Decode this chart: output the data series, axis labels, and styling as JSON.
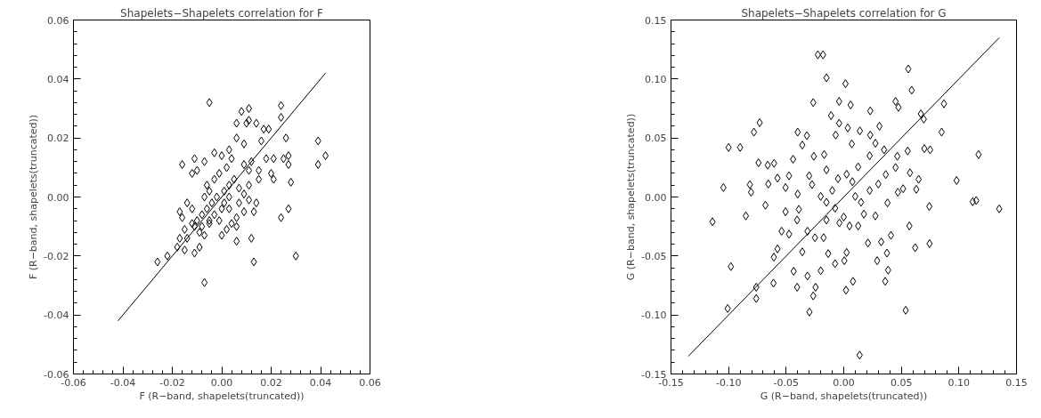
{
  "chart_data": [
    {
      "type": "scatter",
      "title": "Shapelets−Shapelets correlation for F",
      "xlabel": "F (R−band, shapelets(truncated))",
      "ylabel": "F (R−band, shapelets(truncated))",
      "xlim": [
        -0.06,
        0.06
      ],
      "ylim": [
        -0.06,
        0.06
      ],
      "xticks": [
        -0.06,
        -0.04,
        -0.02,
        {
          "value": 0,
          "label": "0.00"
        },
        0.02,
        0.04,
        0.06
      ],
      "yticks": [
        -0.06,
        -0.04,
        -0.02,
        {
          "value": 0,
          "label": "0.00"
        },
        0.02,
        0.04,
        0.06
      ],
      "grid": false,
      "series": [
        {
          "marker": "diamond",
          "color": "#000000",
          "x": [
            -0.005,
            0.011,
            0.008,
            0.024,
            0.024,
            0.011,
            0.014,
            0.006,
            0.01,
            0.019,
            0.017,
            0.026,
            0.039,
            0.042,
            0.039,
            0.016,
            0.006,
            0.009,
            0.027,
            0.027,
            0.025,
            0.021,
            0.018,
            0.028,
            0.02,
            0.021,
            0.015,
            0.015,
            -0.016,
            -0.011,
            -0.012,
            -0.01,
            -0.003,
            0.0,
            0.003,
            0.004,
            0.009,
            0.012,
            0.011,
            -0.007,
            -0.014,
            -0.017,
            -0.016,
            -0.012,
            -0.015,
            -0.017,
            -0.018,
            -0.015,
            -0.022,
            -0.026,
            -0.011,
            -0.009,
            -0.007,
            -0.014,
            -0.011,
            -0.009,
            -0.007,
            -0.01,
            -0.008,
            -0.006,
            -0.004,
            -0.002,
            0.001,
            0.003,
            0.005,
            0.007,
            0.009,
            0.011,
            0.011,
            -0.003,
            -0.001,
            -0.005,
            0.0,
            0.002,
            0.004,
            0.006,
            0.006,
            0.009,
            0.006,
            0.012,
            0.013,
            0.013,
            0.014,
            0.024,
            0.027,
            0.03,
            -0.007,
            -0.005,
            0.001,
            0.003,
            -0.006,
            -0.003,
            0.0,
            -0.005,
            -0.008,
            -0.012,
            0.003,
            0.007,
            -0.001,
            0.002
          ],
          "values": [
            0.032,
            0.03,
            0.029,
            0.031,
            0.027,
            0.026,
            0.025,
            0.025,
            0.025,
            0.023,
            0.023,
            0.02,
            0.019,
            0.014,
            0.011,
            0.019,
            0.02,
            0.018,
            0.014,
            0.011,
            0.013,
            0.013,
            0.013,
            0.005,
            0.008,
            0.006,
            0.009,
            0.006,
            0.011,
            0.013,
            0.008,
            0.009,
            0.015,
            0.014,
            0.016,
            0.013,
            0.011,
            0.012,
            0.009,
            0.012,
            -0.002,
            -0.005,
            -0.007,
            -0.004,
            -0.011,
            -0.014,
            -0.017,
            -0.018,
            -0.02,
            -0.022,
            -0.019,
            -0.017,
            -0.029,
            -0.014,
            -0.01,
            -0.012,
            -0.013,
            -0.008,
            -0.006,
            -0.004,
            -0.002,
            0.0,
            0.002,
            0.004,
            0.006,
            0.003,
            0.001,
            0.004,
            -0.001,
            -0.006,
            -0.008,
            -0.009,
            -0.013,
            -0.011,
            -0.009,
            -0.01,
            -0.015,
            -0.005,
            -0.007,
            -0.014,
            -0.022,
            -0.005,
            -0.002,
            -0.007,
            -0.004,
            -0.02,
            0.0,
            0.002,
            -0.002,
            -0.004,
            0.004,
            0.006,
            -0.004,
            -0.008,
            -0.01,
            -0.009,
            0.0,
            -0.002,
            0.008,
            0.01
          ]
        },
        {
          "type": "line",
          "marker": "none",
          "color": "#000000",
          "x": [
            -0.042,
            0.042
          ],
          "values": [
            -0.042,
            0.042
          ]
        }
      ]
    },
    {
      "type": "scatter",
      "title": "Shapelets−Shapelets correlation for G",
      "xlabel": "G (R−band, shapelets(truncated))",
      "ylabel": "G (R−band, shapelets(truncated))",
      "xlim": [
        -0.15,
        0.15
      ],
      "ylim": [
        -0.15,
        0.15
      ],
      "xticks": [
        -0.15,
        {
          "value": -0.1,
          "label": "-0.10"
        },
        -0.05,
        {
          "value": 0,
          "label": "0.00"
        },
        0.05,
        {
          "value": 0.1,
          "label": "0.10"
        },
        0.15
      ],
      "yticks": [
        -0.15,
        {
          "value": -0.1,
          "label": "-0.10"
        },
        -0.05,
        {
          "value": 0,
          "label": "0.00"
        },
        0.05,
        {
          "value": 0.1,
          "label": "0.10"
        },
        0.15
      ],
      "grid": false,
      "series": [
        {
          "marker": "diamond",
          "color": "#000000",
          "x": [
            -0.0225,
            -0.018,
            0.056,
            -0.015,
            0.0015,
            0.059,
            -0.0265,
            -0.004,
            0.006,
            0.045,
            0.0475,
            0.023,
            0.067,
            0.0695,
            -0.073,
            -0.078,
            -0.011,
            -0.004,
            0.031,
            0.0035,
            0.014,
            -0.04,
            -0.032,
            0.023,
            -0.1,
            -0.09,
            -0.036,
            -0.007,
            0.007,
            0.0275,
            0.035,
            0.07,
            0.0555,
            -0.074,
            -0.0605,
            -0.066,
            -0.044,
            -0.026,
            -0.017,
            0.0225,
            0.0465,
            -0.1045,
            -0.0815,
            -0.0805,
            -0.0655,
            -0.0575,
            -0.0475,
            -0.0505,
            -0.114,
            -0.085,
            -0.068,
            -0.0505,
            -0.04,
            -0.039,
            -0.098,
            -0.1008,
            -0.076,
            -0.076,
            -0.061,
            -0.0607,
            -0.0575,
            -0.054,
            -0.0475,
            -0.0405,
            -0.0435,
            -0.0405,
            -0.0315,
            -0.0298,
            -0.0265,
            -0.0245,
            -0.02,
            -0.0135,
            -0.0075,
            0.0005,
            0.002,
            0.008,
            0.0025,
            0.0138,
            -0.036,
            -0.025,
            -0.0315,
            0.0538,
            0.036,
            0.0385,
            0.029,
            0.0375,
            0.0325,
            0.041,
            0.021,
            0.062,
            0.0745,
            0.057,
            0.0743,
            0.047,
            0.0515,
            0.063,
            0.065,
            0.0575,
            0.045,
            0.0365,
            0.03,
            0.038,
            0.0275,
            0.0175,
            0.01,
            0.0075,
            0.0025,
            -0.005,
            -0.01,
            -0.015,
            -0.0075,
            0.0,
            0.005,
            -0.0038,
            -0.015,
            -0.02,
            -0.0275,
            0.015,
            0.0225,
            0.0125,
            -0.0175,
            -0.03,
            -0.015,
            0.0125,
            0.117,
            0.112,
            0.115,
            0.135,
            0.098,
            0.087,
            0.075,
            0.085
          ],
          "values": [
            0.1205,
            0.1205,
            0.1085,
            0.101,
            0.096,
            0.0905,
            0.08,
            0.081,
            0.078,
            0.081,
            0.076,
            0.073,
            0.0705,
            0.066,
            0.063,
            0.055,
            0.069,
            0.0625,
            0.06,
            0.0585,
            0.056,
            0.055,
            0.052,
            0.0525,
            0.042,
            0.042,
            0.044,
            0.0525,
            0.045,
            0.0455,
            0.04,
            0.041,
            0.039,
            0.029,
            0.0285,
            0.027,
            0.032,
            0.0345,
            0.036,
            0.035,
            0.0345,
            0.008,
            0.0105,
            0.004,
            0.011,
            0.016,
            0.018,
            0.008,
            -0.021,
            -0.016,
            -0.007,
            -0.0125,
            0.0025,
            -0.0105,
            -0.059,
            -0.0945,
            -0.0765,
            -0.086,
            -0.073,
            -0.051,
            -0.044,
            -0.029,
            -0.0315,
            -0.0195,
            -0.063,
            -0.0765,
            -0.067,
            -0.0975,
            -0.0838,
            -0.0765,
            -0.0625,
            -0.048,
            -0.0565,
            -0.054,
            -0.079,
            -0.0715,
            -0.047,
            -0.134,
            -0.0465,
            -0.0345,
            -0.029,
            -0.096,
            -0.0715,
            -0.062,
            -0.054,
            -0.0475,
            -0.038,
            -0.0325,
            -0.039,
            -0.043,
            -0.0395,
            -0.0245,
            -0.008,
            0.004,
            0.007,
            0.0065,
            0.015,
            0.0205,
            0.025,
            0.019,
            0.011,
            -0.005,
            -0.016,
            -0.0145,
            0.0005,
            0.013,
            0.0193,
            0.0155,
            0.0055,
            -0.0045,
            -0.0095,
            -0.017,
            -0.0245,
            -0.022,
            -0.0195,
            0.0005,
            0.0105,
            -0.0045,
            0.0055,
            -0.0245,
            -0.0345,
            0.018,
            0.023,
            0.0255,
            0.036,
            -0.004,
            -0.003,
            -0.01,
            0.014,
            0.079,
            0.04,
            0.055
          ]
        },
        {
          "type": "line",
          "marker": "none",
          "color": "#000000",
          "x": [
            -0.135,
            0.135
          ],
          "values": [
            -0.135,
            0.135
          ]
        }
      ]
    }
  ]
}
